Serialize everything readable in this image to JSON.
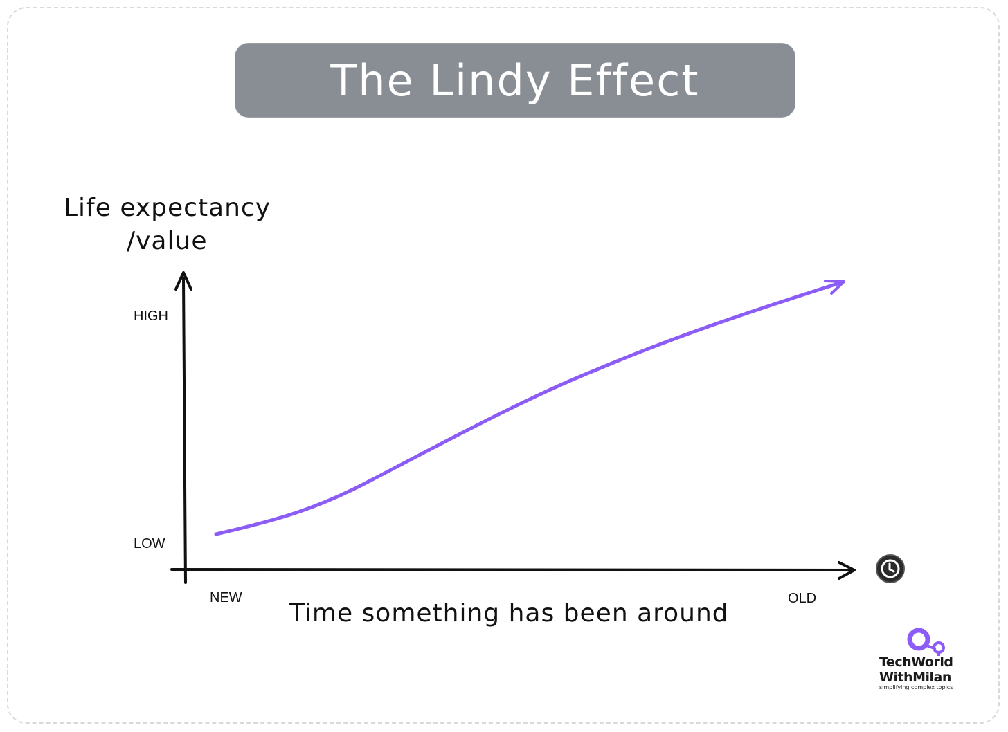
{
  "title": "The Lindy Effect",
  "y_axis_label": [
    "Life expectancy",
    "/value"
  ],
  "x_axis_label": "Time something has been around",
  "ticks": {
    "y_high": "HIGH",
    "y_low": "LOW",
    "x_new": "NEW",
    "x_old": "OLD"
  },
  "colors": {
    "curve": "#8b5cf6",
    "axis": "#111111",
    "banner": "#898e94"
  },
  "icons": {
    "x_axis_end": "clock-icon"
  },
  "logo": {
    "line1": "TechWorld",
    "line2": "WithMilan",
    "tagline": "simplifying complex topics"
  }
}
